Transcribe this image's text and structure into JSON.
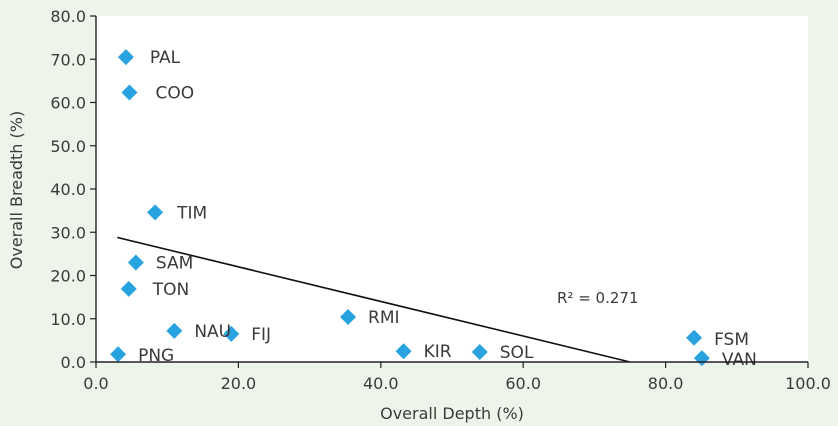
{
  "chart_data": {
    "type": "scatter",
    "title": "",
    "xlabel": "Overall Depth (%)",
    "ylabel": "Overall Breadth (%)",
    "xlim": [
      0,
      100
    ],
    "ylim": [
      0,
      80
    ],
    "x_ticks": [
      "0.0",
      "20.0",
      "40.0",
      "60.0",
      "80.0",
      "100.0"
    ],
    "y_ticks": [
      "0.0",
      "10.0",
      "20.0",
      "30.0",
      "40.0",
      "50.0",
      "60.0",
      "70.0",
      "80.0"
    ],
    "grid": false,
    "points": [
      {
        "label": "PAL",
        "x": 4.2,
        "y": 70.5
      },
      {
        "label": "COO",
        "x": 4.7,
        "y": 62.3
      },
      {
        "label": "TIM",
        "x": 8.3,
        "y": 34.6
      },
      {
        "label": "SAM",
        "x": 5.6,
        "y": 23.0
      },
      {
        "label": "TON",
        "x": 4.6,
        "y": 16.9
      },
      {
        "label": "NAU",
        "x": 11.0,
        "y": 7.2
      },
      {
        "label": "FIJ",
        "x": 19.0,
        "y": 6.5
      },
      {
        "label": "RMI",
        "x": 35.4,
        "y": 10.4
      },
      {
        "label": "PNG",
        "x": 3.1,
        "y": 1.8
      },
      {
        "label": "KIR",
        "x": 43.2,
        "y": 2.5
      },
      {
        "label": "SOL",
        "x": 53.9,
        "y": 2.3
      },
      {
        "label": "FSM",
        "x": 84.0,
        "y": 5.6
      },
      {
        "label": "VAN",
        "x": 85.1,
        "y": 0.9
      }
    ],
    "trendline": {
      "x": [
        3,
        75
      ],
      "y": [
        28.8,
        0
      ]
    },
    "annotation": "R² = 0.271",
    "colors": {
      "marker": "#29a3e0",
      "line": "#111111",
      "axis": "#222222",
      "background": "#edf5ea",
      "plot_background": "#ffffff"
    }
  }
}
